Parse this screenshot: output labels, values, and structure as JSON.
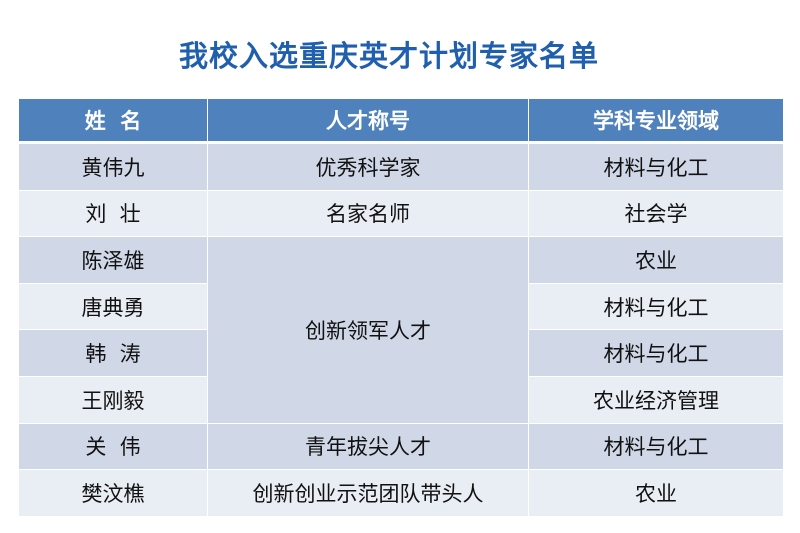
{
  "title": "我校入选重庆英才计划专家名单",
  "table": {
    "headers": [
      "姓  名",
      "人才称号",
      "学科专业领域"
    ],
    "rows": [
      {
        "name": "黄伟九",
        "title": "优秀科学家",
        "field": "材料与化工"
      },
      {
        "name": "刘  壮",
        "title": "名家名师",
        "field": "社会学"
      },
      {
        "name": "陈泽雄",
        "title": "创新领军人才",
        "field": "农业"
      },
      {
        "name": "唐典勇",
        "title": "创新领军人才",
        "field": "材料与化工"
      },
      {
        "name": "韩  涛",
        "title": "创新领军人才",
        "field": "材料与化工"
      },
      {
        "name": "王刚毅",
        "title": "创新领军人才",
        "field": "农业经济管理"
      },
      {
        "name": "关  伟",
        "title": "青年拔尖人才",
        "field": "材料与化工"
      },
      {
        "name": "樊汶樵",
        "title": "创新创业示范团队带头人",
        "field": "农业"
      }
    ]
  },
  "colors": {
    "header": "#4f81bd",
    "row_dark": "#d0d8e8",
    "row_light": "#e9edf4",
    "title": "#1f5fae"
  }
}
